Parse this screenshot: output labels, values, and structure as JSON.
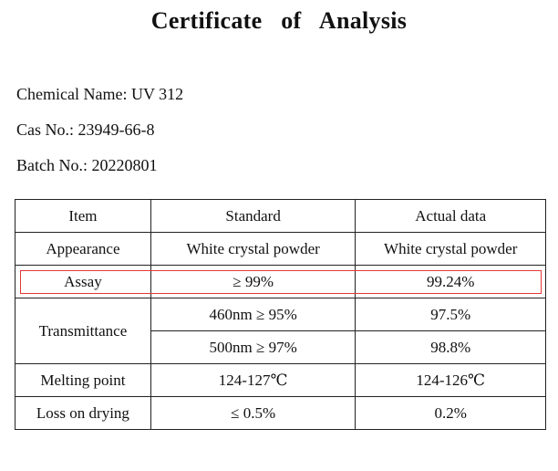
{
  "document": {
    "title": "Certificate of Analysis",
    "fields": [
      {
        "label": "Chemical Name: ",
        "value": "UV 312"
      },
      {
        "label": "Cas No.: ",
        "value": "23949-66-8"
      },
      {
        "label": "Batch No.: ",
        "value": "20220801"
      }
    ]
  },
  "table": {
    "headers": [
      "Item",
      "Standard",
      "Actual data"
    ],
    "rows": {
      "appearance": {
        "item": "Appearance",
        "standard": "White crystal powder",
        "actual": "White crystal powder"
      },
      "assay": {
        "item": "Assay",
        "standard": "≥ 99%",
        "actual": "99.24%"
      },
      "transmittance": {
        "item": "Transmittance",
        "sub": [
          {
            "standard": "460nm ≥ 95%",
            "actual": "97.5%"
          },
          {
            "standard": "500nm ≥ 97%",
            "actual": "98.8%"
          }
        ]
      },
      "melting_point": {
        "item": "Melting point",
        "standard": "124-127℃",
        "actual": "124-126℃"
      },
      "loss_on_drying": {
        "item": "Loss on drying",
        "standard": "≤ 0.5%",
        "actual": "0.2%"
      }
    }
  },
  "highlight": {
    "target": "assay-row",
    "color": "#e53935"
  }
}
